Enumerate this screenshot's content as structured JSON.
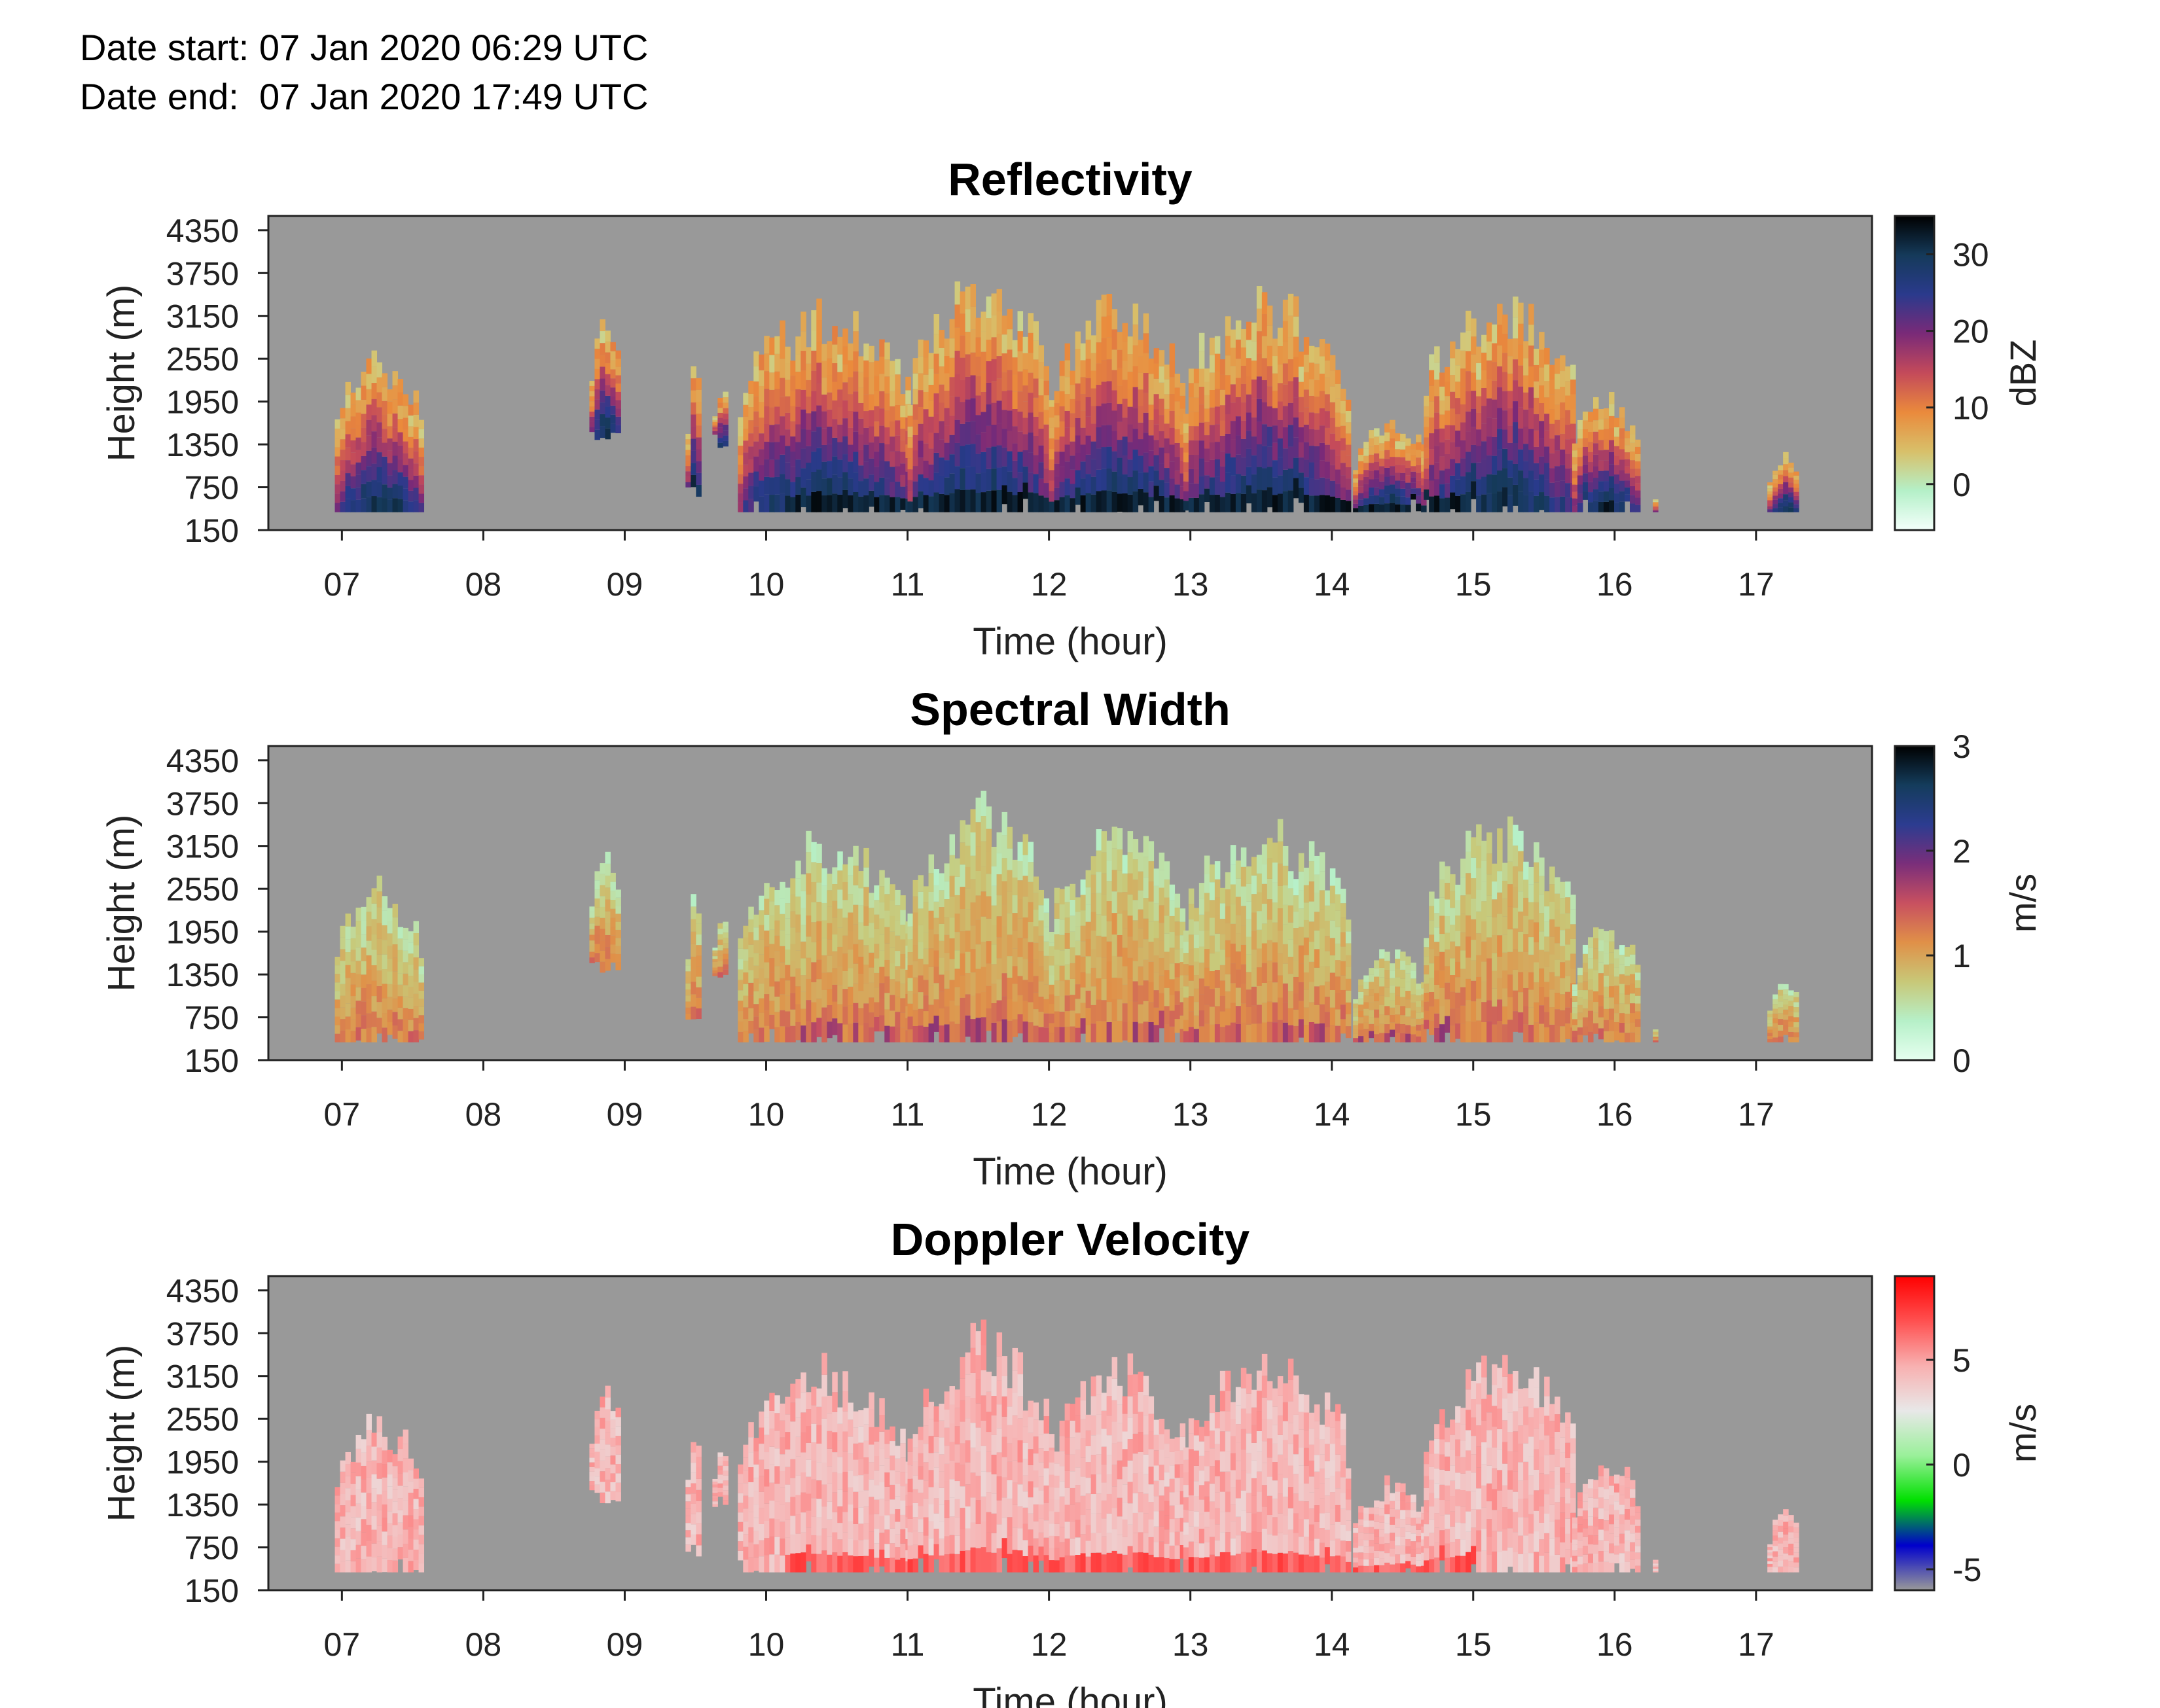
{
  "header": {
    "date_start": "Date start: 07 Jan 2020 06:29 UTC",
    "date_end": "Date end:  07 Jan 2020 17:49 UTC"
  },
  "chart_data": [
    {
      "type": "heatmap",
      "title": "Reflectivity",
      "xlabel": "Time (hour)",
      "ylabel": "Height (m)",
      "x_ticks": [
        "07",
        "08",
        "09",
        "10",
        "11",
        "12",
        "13",
        "14",
        "15",
        "16",
        "17"
      ],
      "y_ticks": [
        "150",
        "750",
        "1350",
        "1950",
        "2550",
        "3150",
        "3750",
        "4350"
      ],
      "xlim": [
        6.48,
        17.82
      ],
      "ylim": [
        150,
        4550
      ],
      "colorbar": {
        "label": "dBZ",
        "ticks": [
          0,
          10,
          20,
          30
        ],
        "range": [
          -6,
          35
        ],
        "stops": [
          "#f4fffb",
          "#b4f0c8",
          "#d8c06a",
          "#ea8a3c",
          "#c44a5a",
          "#7a2a78",
          "#2a3a8c",
          "#153a5a",
          "#000000"
        ]
      },
      "background": "#999999",
      "no_data_color": "#999999",
      "cloud_regions": [
        {
          "t": [
            6.95,
            7.55
          ],
          "top": 2800,
          "base": 400
        },
        {
          "t": [
            8.75,
            8.95
          ],
          "top": 3250,
          "base": 1350
        },
        {
          "t": [
            9.43,
            9.53
          ],
          "top": 2650,
          "base": 600
        },
        {
          "t": [
            9.62,
            9.72
          ],
          "top": 2200,
          "base": 1300
        },
        {
          "t": [
            9.8,
            11.0
          ],
          "top": 3500,
          "base": 400
        },
        {
          "t": [
            11.0,
            12.0
          ],
          "top": 4000,
          "base": 400
        },
        {
          "t": [
            12.0,
            12.95
          ],
          "top": 3600,
          "base": 400
        },
        {
          "t": [
            12.95,
            14.1
          ],
          "top": 3700,
          "base": 400
        },
        {
          "t": [
            14.15,
            14.65
          ],
          "top": 1800,
          "base": 400
        },
        {
          "t": [
            14.65,
            15.7
          ],
          "top": 3700,
          "base": 400
        },
        {
          "t": [
            15.7,
            16.15
          ],
          "top": 2200,
          "base": 400
        },
        {
          "t": [
            16.27,
            16.3
          ],
          "top": 750,
          "base": 400
        },
        {
          "t": [
            17.08,
            17.3
          ],
          "top": 1300,
          "base": 400
        }
      ]
    },
    {
      "type": "heatmap",
      "title": "Spectral Width",
      "xlabel": "Time (hour)",
      "ylabel": "Height (m)",
      "x_ticks": [
        "07",
        "08",
        "09",
        "10",
        "11",
        "12",
        "13",
        "14",
        "15",
        "16",
        "17"
      ],
      "y_ticks": [
        "150",
        "750",
        "1350",
        "1950",
        "2550",
        "3150",
        "3750",
        "4350"
      ],
      "xlim": [
        6.48,
        17.82
      ],
      "ylim": [
        150,
        4550
      ],
      "colorbar": {
        "label": "m/s",
        "ticks": [
          0,
          1,
          2,
          3
        ],
        "range": [
          0,
          3
        ],
        "stops": [
          "#e6fff0",
          "#b6f0c8",
          "#c8c878",
          "#e09048",
          "#c85060",
          "#7a2e7a",
          "#2c3c90",
          "#143c5c",
          "#000000"
        ]
      },
      "background": "#999999",
      "no_data_color": "#999999"
    },
    {
      "type": "heatmap",
      "title": "Doppler Velocity",
      "xlabel": "Time (hour)",
      "ylabel": "Height (m)",
      "x_ticks": [
        "07",
        "08",
        "09",
        "10",
        "11",
        "12",
        "13",
        "14",
        "15",
        "16",
        "17"
      ],
      "y_ticks": [
        "150",
        "750",
        "1350",
        "1950",
        "2550",
        "3150",
        "3750",
        "4350"
      ],
      "xlim": [
        6.48,
        17.82
      ],
      "ylim": [
        150,
        4550
      ],
      "colorbar": {
        "label": "m/s",
        "ticks": [
          -5,
          0,
          5
        ],
        "range": [
          -6,
          9
        ],
        "stops": [
          "#999999",
          "#0000cc",
          "#00e000",
          "#9af09a",
          "#e8e8e8",
          "#f8b0b0",
          "#ff5050",
          "#ff0000"
        ]
      },
      "background": "#999999",
      "no_data_color": "#999999"
    }
  ]
}
